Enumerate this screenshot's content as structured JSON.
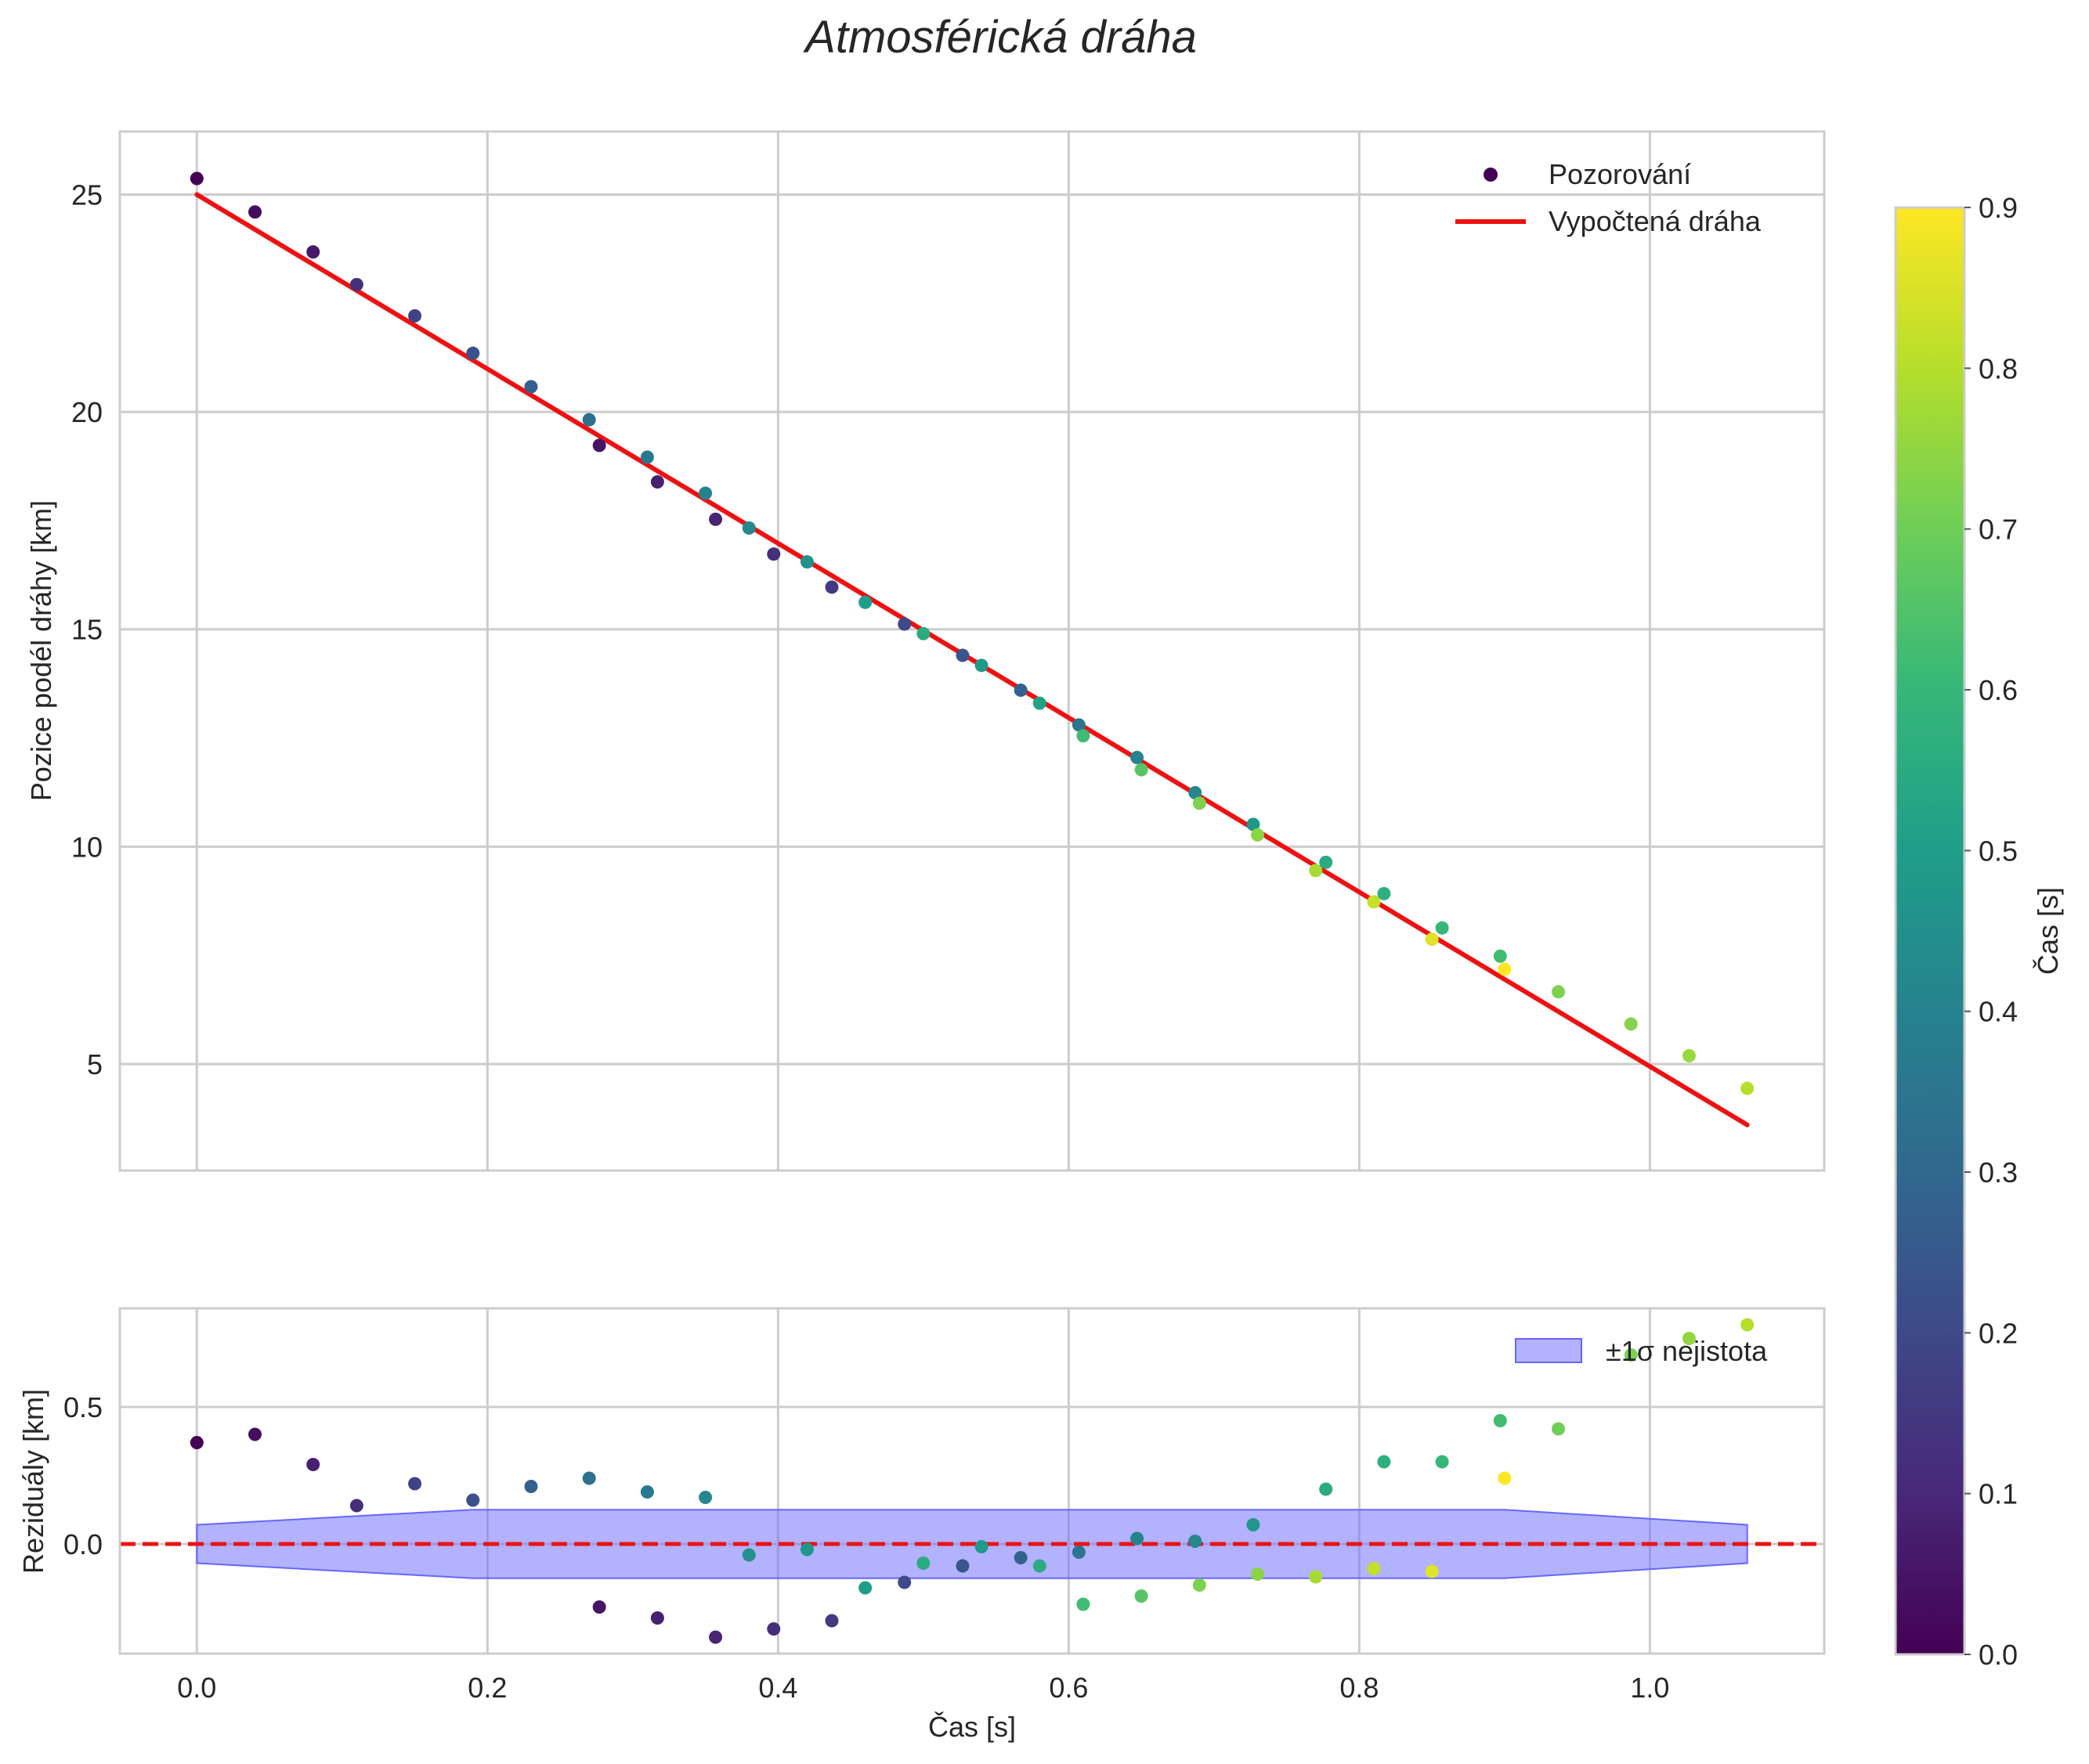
{
  "figure": {
    "title": "Atmosférická dráha"
  },
  "chart_data": [
    {
      "type": "scatter",
      "panel": "top",
      "xlabel": "",
      "ylabel": "Pozice podél dráhy [km]",
      "xlim": [
        -0.053,
        1.12
      ],
      "ylim": [
        2.55,
        26.45
      ],
      "xticks": [
        "0.0",
        "0.2",
        "0.4",
        "0.6",
        "0.8",
        "1.0"
      ],
      "yticks": [
        "5",
        "10",
        "15",
        "20",
        "25"
      ],
      "ytick_values": [
        5,
        10,
        15,
        20,
        25
      ],
      "grid": true,
      "legend": {
        "position": "top-right",
        "entries": [
          "Pozorování",
          "Vypočtená dráha"
        ]
      },
      "fit_line": {
        "name": "Vypočtená dráha",
        "color": "#ee1111",
        "x": [
          0.0,
          1.067
        ],
        "y": [
          25.0,
          3.6
        ]
      },
      "series": [
        {
          "name": "Pozorování",
          "x": [
            0.0,
            0.04,
            0.08,
            0.11,
            0.15,
            0.19,
            0.23,
            0.27,
            0.277,
            0.31,
            0.317,
            0.35,
            0.357,
            0.38,
            0.397,
            0.42,
            0.437,
            0.46,
            0.487,
            0.5,
            0.527,
            0.54,
            0.567,
            0.58,
            0.607,
            0.61,
            0.647,
            0.65,
            0.687,
            0.69,
            0.727,
            0.73,
            0.77,
            0.777,
            0.81,
            0.817,
            0.85,
            0.857,
            0.897,
            0.9,
            0.937,
            0.987,
            1.027,
            1.067
          ],
          "y": [
            25.37,
            24.6,
            23.68,
            22.93,
            22.21,
            21.35,
            20.58,
            19.82,
            19.23,
            18.96,
            18.39,
            18.13,
            17.53,
            17.33,
            16.73,
            16.55,
            15.97,
            15.62,
            15.12,
            14.9,
            14.4,
            14.17,
            13.6,
            13.3,
            12.8,
            12.55,
            12.05,
            11.77,
            11.24,
            11.0,
            10.51,
            10.27,
            9.45,
            9.64,
            8.73,
            8.92,
            7.87,
            8.13,
            7.48,
            7.18,
            6.66,
            5.92,
            5.19,
            4.44
          ],
          "c": [
            0.0,
            0.03,
            0.06,
            0.12,
            0.18,
            0.23,
            0.27,
            0.33,
            0.05,
            0.36,
            0.08,
            0.4,
            0.09,
            0.42,
            0.12,
            0.45,
            0.15,
            0.5,
            0.2,
            0.55,
            0.24,
            0.48,
            0.28,
            0.52,
            0.35,
            0.62,
            0.4,
            0.66,
            0.42,
            0.72,
            0.47,
            0.74,
            0.78,
            0.55,
            0.82,
            0.57,
            0.86,
            0.6,
            0.62,
            0.9,
            0.72,
            0.73,
            0.76,
            0.8
          ]
        }
      ]
    },
    {
      "type": "scatter",
      "panel": "bottom",
      "xlabel": "Čas [s]",
      "ylabel": "Reziduály [km]",
      "xlim": [
        -0.053,
        1.12
      ],
      "ylim": [
        -0.4,
        0.86
      ],
      "xticks": [
        "0.0",
        "0.2",
        "0.4",
        "0.6",
        "0.8",
        "1.0"
      ],
      "yticks": [
        "0.0",
        "0.5"
      ],
      "ytick_values": [
        0.0,
        0.5
      ],
      "grid": true,
      "legend": {
        "position": "top-right",
        "entries": [
          "±1σ nejistota"
        ]
      },
      "zero_line": {
        "y": 0,
        "color": "#ee1111",
        "style": "dashed"
      },
      "band": {
        "name": "±1σ nejistota",
        "color": "#6666ff",
        "x": [
          0.0,
          0.19,
          0.9,
          1.067
        ],
        "half_width": [
          0.07,
          0.125,
          0.125,
          0.07
        ]
      },
      "series": [
        {
          "name": "Reziduály",
          "x": [
            0.0,
            0.04,
            0.08,
            0.11,
            0.15,
            0.19,
            0.23,
            0.27,
            0.31,
            0.35,
            0.277,
            0.317,
            0.357,
            0.397,
            0.437,
            0.38,
            0.42,
            0.46,
            0.487,
            0.5,
            0.527,
            0.54,
            0.567,
            0.58,
            0.607,
            0.61,
            0.647,
            0.65,
            0.687,
            0.69,
            0.727,
            0.73,
            0.77,
            0.777,
            0.81,
            0.817,
            0.85,
            0.857,
            0.897,
            0.9,
            0.937,
            0.987,
            1.027,
            1.067
          ],
          "y": [
            0.37,
            0.4,
            0.29,
            0.14,
            0.22,
            0.16,
            0.21,
            0.24,
            0.19,
            0.17,
            -0.23,
            -0.27,
            -0.34,
            -0.31,
            -0.28,
            -0.04,
            -0.02,
            -0.16,
            -0.14,
            -0.07,
            -0.08,
            -0.01,
            -0.05,
            -0.08,
            -0.03,
            -0.22,
            0.02,
            -0.19,
            0.01,
            -0.15,
            0.07,
            -0.11,
            -0.12,
            0.2,
            -0.09,
            0.3,
            -0.1,
            0.3,
            0.45,
            0.24,
            0.42,
            0.69,
            0.75,
            0.8
          ],
          "c": [
            0.0,
            0.03,
            0.08,
            0.12,
            0.18,
            0.22,
            0.27,
            0.33,
            0.37,
            0.42,
            0.05,
            0.08,
            0.09,
            0.12,
            0.15,
            0.45,
            0.47,
            0.5,
            0.2,
            0.55,
            0.24,
            0.48,
            0.28,
            0.55,
            0.35,
            0.62,
            0.4,
            0.66,
            0.42,
            0.72,
            0.47,
            0.74,
            0.78,
            0.55,
            0.82,
            0.57,
            0.86,
            0.6,
            0.62,
            0.9,
            0.7,
            0.72,
            0.75,
            0.8
          ]
        }
      ]
    },
    {
      "type": "colorbar",
      "label": "Čas [s]",
      "range": [
        0.0,
        0.9
      ],
      "colormap": "viridis",
      "ticks": [
        "0.0",
        "0.1",
        "0.2",
        "0.3",
        "0.4",
        "0.5",
        "0.6",
        "0.7",
        "0.8",
        "0.9"
      ],
      "tick_values": [
        0.0,
        0.1,
        0.2,
        0.3,
        0.4,
        0.5,
        0.6,
        0.7,
        0.8,
        0.9
      ]
    }
  ]
}
